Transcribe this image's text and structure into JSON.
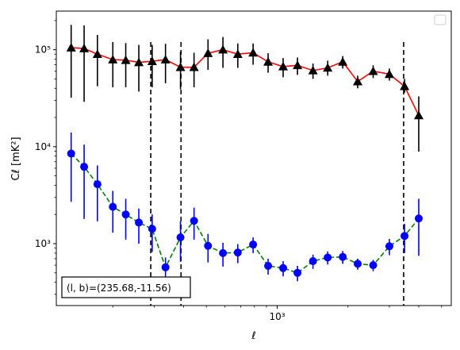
{
  "chart_data": {
    "type": "scatter",
    "title": "",
    "xlabel": "ℓ",
    "ylabel": "Cℓ  [mK²]",
    "x_scale": "log",
    "y_scale": "log",
    "xlim": [
      115,
      5500
    ],
    "ylim": [
      230,
      250000
    ],
    "x_tick_labels": [
      {
        "value": 1000,
        "label": "10³"
      }
    ],
    "y_tick_labels": [
      {
        "value": 1000,
        "label": "10³"
      },
      {
        "value": 10000,
        "label": "10⁴"
      },
      {
        "value": 100000,
        "label": "10⁵"
      }
    ],
    "legend": {
      "location": "top-right",
      "entries": []
    },
    "vertical_lines": [
      290,
      390,
      3450
    ],
    "annotation": "(l, b)=(235.68,-11.56)",
    "series": [
      {
        "marker": "triangle",
        "line_color": "#ff0000",
        "line_style": "solid",
        "marker_color": "#000000",
        "errorbar_color": "#000000",
        "points": [
          {
            "x": 133,
            "y": 105000,
            "lo": 32000,
            "hi": 180000
          },
          {
            "x": 151,
            "y": 103000,
            "lo": 29000,
            "hi": 178000
          },
          {
            "x": 172,
            "y": 90000,
            "lo": 42000,
            "hi": 142000
          },
          {
            "x": 200,
            "y": 79000,
            "lo": 41000,
            "hi": 120000
          },
          {
            "x": 227,
            "y": 78000,
            "lo": 41000,
            "hi": 117000
          },
          {
            "x": 258,
            "y": 74000,
            "lo": 37000,
            "hi": 112000
          },
          {
            "x": 294,
            "y": 76000,
            "lo": 41000,
            "hi": 112000
          },
          {
            "x": 335,
            "y": 79000,
            "lo": 45000,
            "hi": 115000
          },
          {
            "x": 388,
            "y": 66000,
            "lo": 39000,
            "hi": 95000
          },
          {
            "x": 443,
            "y": 66000,
            "lo": 41000,
            "hi": 93000
          },
          {
            "x": 508,
            "y": 92000,
            "lo": 62000,
            "hi": 128000
          },
          {
            "x": 588,
            "y": 100000,
            "lo": 65000,
            "hi": 135000
          },
          {
            "x": 680,
            "y": 90000,
            "lo": 65000,
            "hi": 116000
          },
          {
            "x": 790,
            "y": 93000,
            "lo": 70000,
            "hi": 116000
          },
          {
            "x": 915,
            "y": 75000,
            "lo": 58000,
            "hi": 92000
          },
          {
            "x": 1060,
            "y": 67000,
            "lo": 52000,
            "hi": 82000
          },
          {
            "x": 1220,
            "y": 69000,
            "lo": 55000,
            "hi": 83000
          },
          {
            "x": 1420,
            "y": 61000,
            "lo": 50000,
            "hi": 72000
          },
          {
            "x": 1640,
            "y": 65000,
            "lo": 54000,
            "hi": 77000
          },
          {
            "x": 1900,
            "y": 75000,
            "lo": 64000,
            "hi": 86000
          },
          {
            "x": 2200,
            "y": 47000,
            "lo": 40000,
            "hi": 54000
          },
          {
            "x": 2560,
            "y": 60000,
            "lo": 51000,
            "hi": 69000
          },
          {
            "x": 3000,
            "y": 56000,
            "lo": 48000,
            "hi": 64000
          },
          {
            "x": 3480,
            "y": 42000,
            "lo": 36000,
            "hi": 50000
          },
          {
            "x": 4000,
            "y": 21000,
            "lo": 8900,
            "hi": 33000
          }
        ]
      },
      {
        "marker": "circle",
        "line_color": "#008000",
        "line_style": "dashed",
        "marker_color": "#0000ff",
        "errorbar_color": "#0000ff",
        "points": [
          {
            "x": 133,
            "y": 8500,
            "lo": 2700,
            "hi": 14000
          },
          {
            "x": 151,
            "y": 6200,
            "lo": 1800,
            "hi": 10500
          },
          {
            "x": 172,
            "y": 4100,
            "lo": 1700,
            "hi": 6400
          },
          {
            "x": 200,
            "y": 2400,
            "lo": 1300,
            "hi": 3500
          },
          {
            "x": 227,
            "y": 2000,
            "lo": 1100,
            "hi": 2900
          },
          {
            "x": 258,
            "y": 1650,
            "lo": 1000,
            "hi": 2300
          },
          {
            "x": 294,
            "y": 1420,
            "lo": 820,
            "hi": 2000
          },
          {
            "x": 335,
            "y": 570,
            "lo": 430,
            "hi": 720
          },
          {
            "x": 388,
            "y": 1160,
            "lo": 650,
            "hi": 1700
          },
          {
            "x": 443,
            "y": 1720,
            "lo": 1100,
            "hi": 2350
          },
          {
            "x": 508,
            "y": 950,
            "lo": 640,
            "hi": 1260
          },
          {
            "x": 588,
            "y": 800,
            "lo": 580,
            "hi": 1020
          },
          {
            "x": 680,
            "y": 810,
            "lo": 630,
            "hi": 990
          },
          {
            "x": 790,
            "y": 980,
            "lo": 800,
            "hi": 1160
          },
          {
            "x": 915,
            "y": 590,
            "lo": 480,
            "hi": 700
          },
          {
            "x": 1060,
            "y": 560,
            "lo": 460,
            "hi": 660
          },
          {
            "x": 1220,
            "y": 500,
            "lo": 410,
            "hi": 590
          },
          {
            "x": 1420,
            "y": 660,
            "lo": 550,
            "hi": 770
          },
          {
            "x": 1640,
            "y": 720,
            "lo": 610,
            "hi": 830
          },
          {
            "x": 1900,
            "y": 730,
            "lo": 620,
            "hi": 840
          },
          {
            "x": 2200,
            "y": 620,
            "lo": 540,
            "hi": 700
          },
          {
            "x": 2560,
            "y": 600,
            "lo": 520,
            "hi": 680
          },
          {
            "x": 3000,
            "y": 940,
            "lo": 760,
            "hi": 1120
          },
          {
            "x": 3480,
            "y": 1200,
            "lo": 800,
            "hi": 1600
          },
          {
            "x": 4000,
            "y": 1820,
            "lo": 750,
            "hi": 2900
          }
        ]
      }
    ]
  }
}
